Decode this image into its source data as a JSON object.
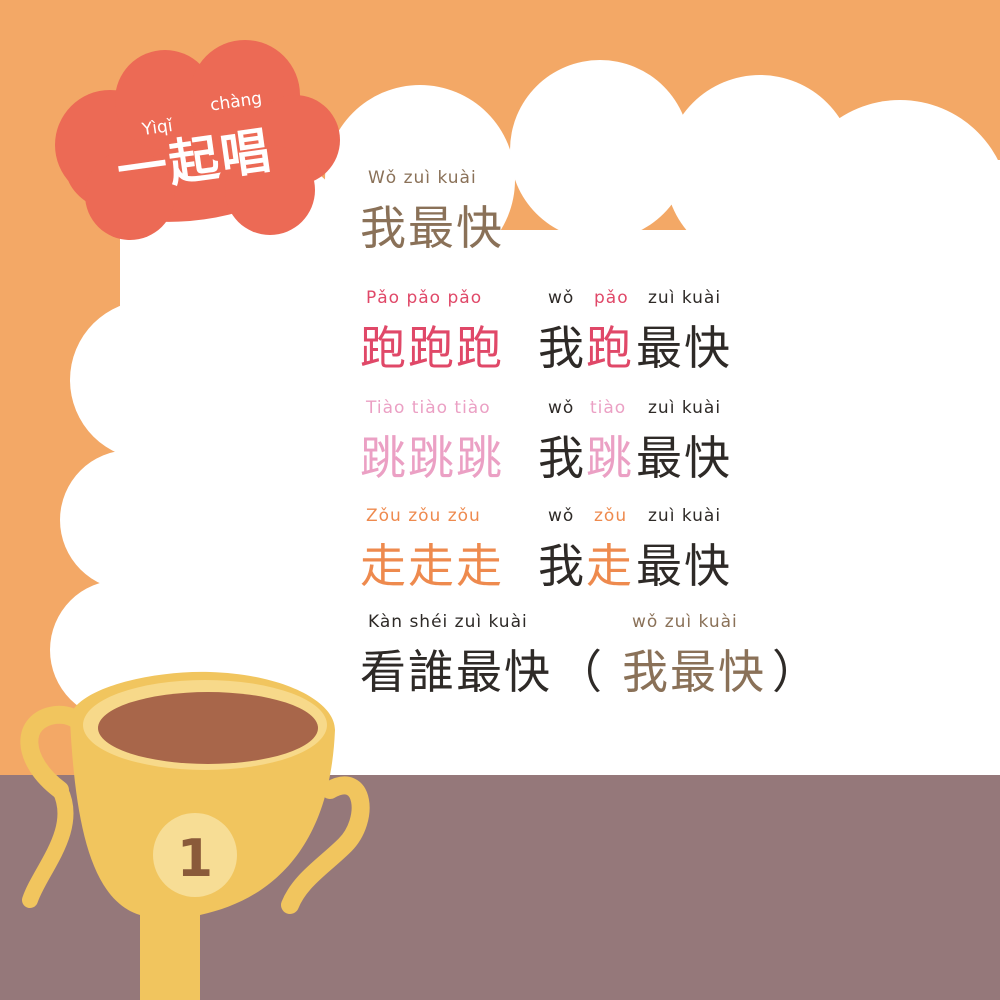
{
  "badge": {
    "pinyin_1": "Yìqǐ",
    "pinyin_2": "chàng",
    "title": "一起唱"
  },
  "song": {
    "title": {
      "pinyin": "Wǒ  zuì  kuài",
      "hanzi": "我最快"
    },
    "verse_run": {
      "pinyin_action": "Pǎo pǎo pǎo",
      "hanzi_action": "跑跑跑",
      "pinyin_wo": "wǒ",
      "hanzi_wo": "我",
      "pinyin_verb": "pǎo",
      "hanzi_verb": "跑",
      "pinyin_end": "zuì  kuài",
      "hanzi_end": "最快"
    },
    "verse_jump": {
      "pinyin_action": "Tiào tiào tiào",
      "hanzi_action": "跳跳跳",
      "pinyin_wo": "wǒ",
      "hanzi_wo": "我",
      "pinyin_verb": "tiào",
      "hanzi_verb": "跳",
      "pinyin_end": "zuì  kuài",
      "hanzi_end": "最快"
    },
    "verse_walk": {
      "pinyin_action": "Zǒu  zǒu  zǒu",
      "hanzi_action": "走走走",
      "pinyin_wo": "wǒ",
      "hanzi_wo": "我",
      "pinyin_verb": "zǒu",
      "hanzi_verb": "走",
      "pinyin_end": "zuì  kuài",
      "hanzi_end": "最快"
    },
    "finale": {
      "pinyin_question": "Kàn shéi zuì kuài",
      "hanzi_question": "看誰最快",
      "pinyin_answer": "wǒ  zuì  kuài",
      "paren_open": "（",
      "hanzi_answer": "我最快",
      "paren_close": "）"
    }
  },
  "trophy": {
    "number": "1"
  },
  "colors": {
    "background_orange": "#f3a866",
    "cloud_white": "#ffffff",
    "table_mauve": "#95787a",
    "badge_coral": "#ec6a55",
    "trophy_gold": "#f1c55e",
    "trophy_cup_inside": "#a8664a",
    "text_brown": "#8a7158",
    "text_red": "#e04868",
    "text_pink": "#eba0c4",
    "text_orange": "#ee8a4e",
    "text_dark": "#2e2a27"
  }
}
